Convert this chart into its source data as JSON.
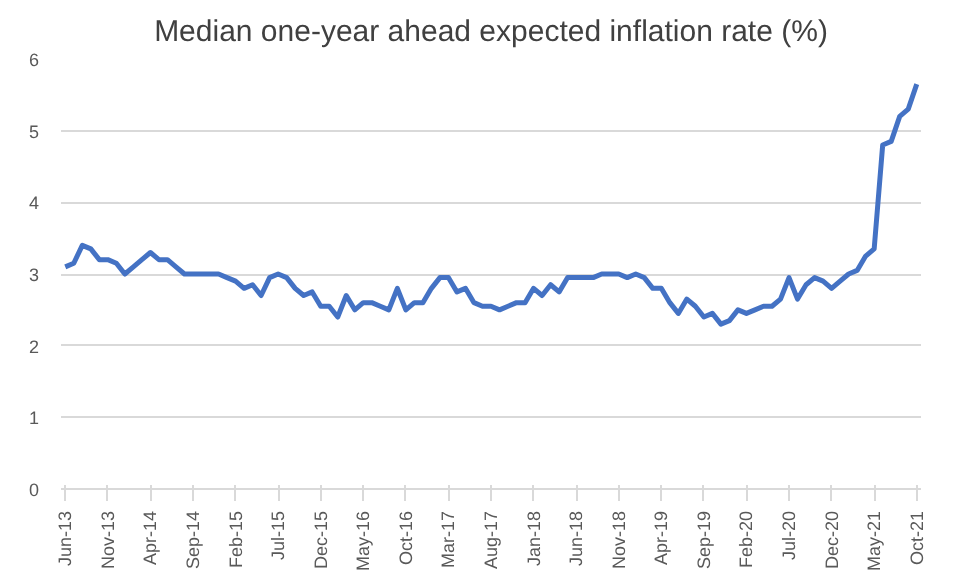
{
  "chart_data": {
    "type": "line",
    "title": "Median one-year ahead expected inflation rate (%)",
    "categories": [
      "Jun-13",
      null,
      null,
      null,
      null,
      "Nov-13",
      null,
      null,
      null,
      null,
      "Apr-14",
      null,
      null,
      null,
      null,
      "Sep-14",
      null,
      null,
      null,
      null,
      "Feb-15",
      null,
      null,
      null,
      null,
      "Jul-15",
      null,
      null,
      null,
      null,
      "Dec-15",
      null,
      null,
      null,
      null,
      "May-16",
      null,
      null,
      null,
      null,
      "Oct-16",
      null,
      null,
      null,
      null,
      "Mar-17",
      null,
      null,
      null,
      null,
      "Aug-17",
      null,
      null,
      null,
      null,
      "Jan-18",
      null,
      null,
      null,
      null,
      "Jun-18",
      null,
      null,
      null,
      null,
      "Nov-18",
      null,
      null,
      null,
      null,
      "Apr-19",
      null,
      null,
      null,
      null,
      "Sep-19",
      null,
      null,
      null,
      null,
      "Feb-20",
      null,
      null,
      null,
      null,
      "Jul-20",
      null,
      null,
      null,
      null,
      "Dec-20",
      null,
      null,
      null,
      null,
      "May-21",
      null,
      null,
      null,
      null,
      "Oct-21"
    ],
    "series": [
      {
        "color": "#4472c4",
        "values": [
          3.1,
          3.15,
          3.4,
          3.35,
          3.2,
          3.2,
          3.15,
          3.0,
          3.1,
          3.2,
          3.3,
          3.2,
          3.2,
          3.1,
          3.0,
          3.0,
          3.0,
          3.0,
          3.0,
          2.95,
          2.9,
          2.8,
          2.85,
          2.7,
          2.95,
          3.0,
          2.95,
          2.8,
          2.7,
          2.75,
          2.55,
          2.55,
          2.4,
          2.7,
          2.5,
          2.6,
          2.6,
          2.55,
          2.5,
          2.8,
          2.5,
          2.6,
          2.6,
          2.8,
          2.95,
          2.95,
          2.75,
          2.8,
          2.6,
          2.55,
          2.55,
          2.5,
          2.55,
          2.6,
          2.6,
          2.8,
          2.7,
          2.85,
          2.75,
          2.95,
          2.95,
          2.95,
          2.95,
          3.0,
          3.0,
          3.0,
          2.95,
          3.0,
          2.95,
          2.8,
          2.8,
          2.6,
          2.45,
          2.65,
          2.55,
          2.4,
          2.45,
          2.3,
          2.35,
          2.5,
          2.45,
          2.5,
          2.55,
          2.55,
          2.65,
          2.95,
          2.65,
          2.85,
          2.95,
          2.9,
          2.8,
          2.9,
          3.0,
          3.05,
          3.25,
          3.35,
          4.8,
          4.85,
          5.2,
          5.3,
          5.65
        ]
      }
    ],
    "ylim": [
      0,
      6
    ],
    "yticks": [
      0,
      1,
      2,
      3,
      4,
      5,
      6
    ],
    "grid": "y",
    "line_style": "solid"
  }
}
